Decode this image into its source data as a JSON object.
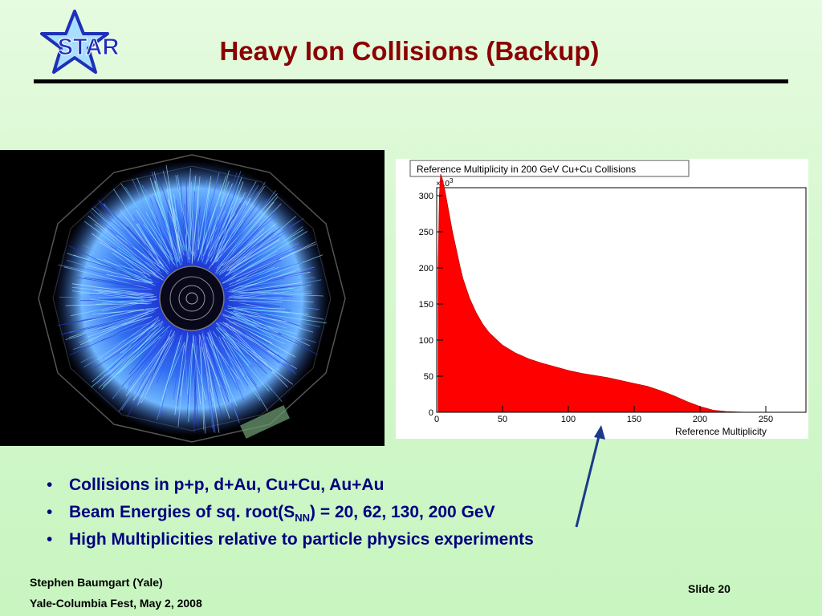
{
  "logo": {
    "text": "STAR"
  },
  "header": {
    "title": "Heavy Ion Collisions (Backup)"
  },
  "chart_data": {
    "type": "area",
    "title": "Reference Multiplicity in 200 GeV Cu+Cu Collisions",
    "xlabel": "Reference Multiplicity",
    "ylabel": "",
    "y_multiplier": "×10",
    "y_multiplier_exp": "3",
    "xlim": [
      0,
      250
    ],
    "ylim": [
      0,
      320
    ],
    "xticks": [
      "0",
      "50",
      "100",
      "150",
      "200",
      "250"
    ],
    "yticks": [
      "0",
      "50",
      "100",
      "150",
      "200",
      "250",
      "300"
    ],
    "x": [
      1,
      2,
      3,
      4,
      5,
      6,
      7,
      8,
      10,
      12,
      15,
      18,
      20,
      25,
      30,
      35,
      40,
      50,
      60,
      70,
      80,
      90,
      100,
      110,
      120,
      130,
      140,
      150,
      160,
      170,
      180,
      190,
      200,
      210,
      220,
      230,
      240,
      250
    ],
    "values": [
      190,
      300,
      330,
      325,
      318,
      310,
      300,
      290,
      270,
      250,
      225,
      200,
      185,
      158,
      138,
      122,
      110,
      93,
      82,
      74,
      68,
      63,
      58,
      54,
      51,
      48,
      44,
      40,
      36,
      30,
      23,
      15,
      8,
      3,
      1,
      0.3,
      0,
      0
    ],
    "grid": false,
    "color": "#ff0000"
  },
  "bullets": [
    {
      "text": "Collisions in p+p, d+Au, Cu+Cu, Au+Au"
    },
    {
      "prefix": "Beam Energies of sq. root(S",
      "sub": "NN",
      "suffix": ") = 20, 62, 130, 200 GeV"
    },
    {
      "text": "High Multiplicities relative to particle physics experiments"
    }
  ],
  "footer": {
    "author": "Stephen Baumgart (Yale)",
    "event": "Yale-Columbia Fest, May 2, 2008",
    "slide": "Slide 20"
  },
  "colors": {
    "title": "#8b0000",
    "bullets": "#000080",
    "histogram": "#ff0000",
    "arrow": "#1a3a8a"
  }
}
